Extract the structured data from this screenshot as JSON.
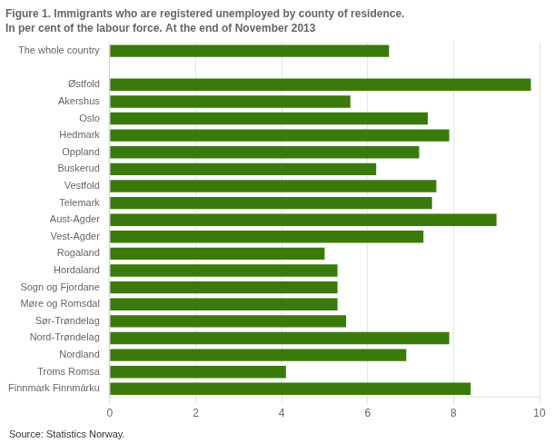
{
  "chart_data": {
    "type": "bar",
    "orientation": "horizontal",
    "title": "Figure 1. Immigrants who are registered unemployed by county of residence.",
    "subtitle": "In per cent of the labour force. At the end of November 2013",
    "annotations": [
      "Source: Statistics Norway."
    ],
    "categories": [
      "The whole country",
      null,
      "Østfold",
      "Akershus",
      "Oslo",
      "Hedmark",
      "Oppland",
      "Buskerud",
      "Vestfold",
      "Telemark",
      "Aust-Agder",
      "Vest-Agder",
      "Rogaland",
      "Hordaland",
      "Sogn og Fjordane",
      "Møre og Romsdal",
      "Sør-Trøndelag",
      "Nord-Trøndelag",
      "Nordland",
      "Troms Romsa",
      "Finnmark Finnmárku"
    ],
    "values": [
      6.5,
      0,
      9.8,
      5.6,
      7.4,
      7.9,
      7.2,
      6.2,
      7.6,
      7.5,
      9.0,
      7.3,
      5.0,
      5.3,
      5.3,
      5.3,
      5.5,
      7.9,
      6.9,
      4.1,
      8.4
    ],
    "color": "#3a7a0a",
    "xlim": [
      0,
      10
    ],
    "xticks": [
      0,
      2,
      4,
      6,
      8,
      10
    ],
    "grid": true
  }
}
